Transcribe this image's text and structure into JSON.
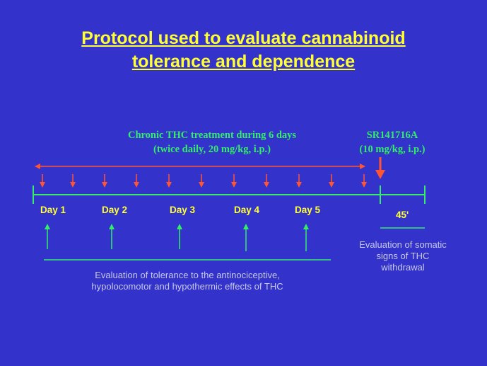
{
  "title": {
    "line1": "Protocol used to evaluate cannabinoid",
    "line2": "tolerance and dependence"
  },
  "treatment": {
    "line1": "Chronic THC treatment during 6 days",
    "line2": "(twice daily, 20 mg/kg, i.p.)"
  },
  "antagonist": {
    "line1": "SR141716A",
    "line2": "(10 mg/kg, i.p.)"
  },
  "days": [
    "Day 1",
    "Day 2",
    "Day 3",
    "Day 4",
    "Day 5"
  ],
  "withdrawal_time": "45'",
  "tolerance_eval": {
    "line1": "Evaluation of tolerance to the antinociceptive,",
    "line2": "hypolocomotor and hypothermic effects of THC"
  },
  "withdrawal_eval": {
    "line1": "Evaluation of somatic",
    "line2": "signs of THC",
    "line3": "withdrawal"
  },
  "colors": {
    "background": "#3333cc",
    "title": "#ffff33",
    "timeline": "#33ee66",
    "injection_arrows": "#ff5533",
    "eval_text": "#c8c8e8"
  }
}
